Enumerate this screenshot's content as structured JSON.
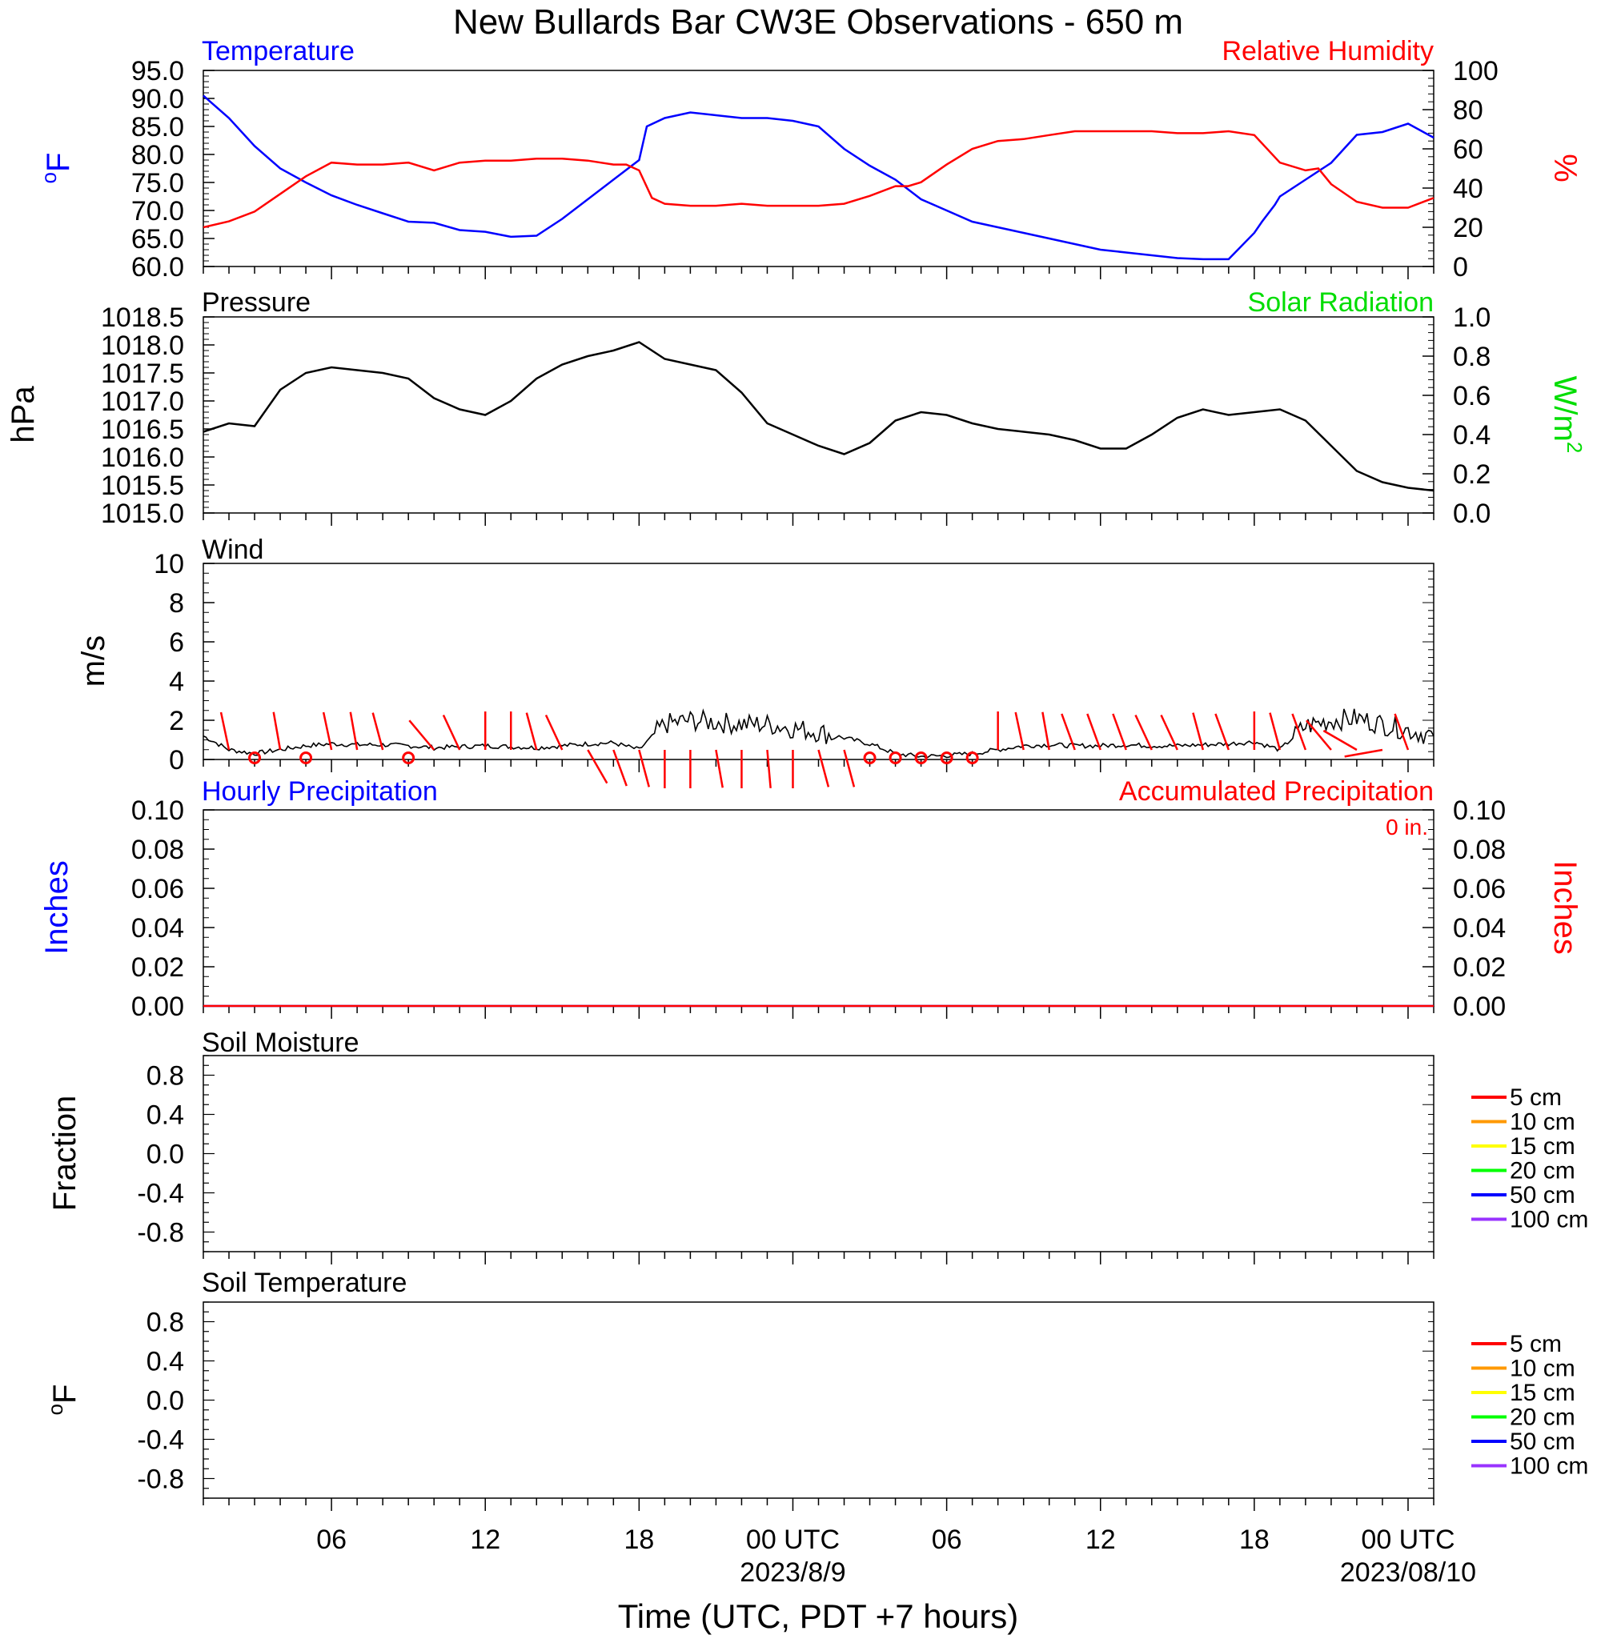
{
  "page_title": "New Bullards Bar CW3E Observations - 650 m",
  "x_axis": {
    "title": "Time (UTC, PDT +7 hours)",
    "tick_labels": [
      "06",
      "12",
      "18",
      "00 UTC",
      "06",
      "12",
      "18",
      "00 UTC"
    ],
    "date_labels": [
      "2023/8/9",
      "2023/08/10"
    ],
    "range_hours_utc": [
      1,
      49
    ]
  },
  "colors": {
    "temperature": "#0000ff",
    "humidity": "#ff0000",
    "pressure": "#000000",
    "solar": "#00dd00",
    "wind": "#000000",
    "wind_barb": "#ff0000",
    "hourly_precip": "#0000ff",
    "accum_precip": "#ff0000",
    "soil_5cm": "#ff0000",
    "soil_10cm": "#ff9900",
    "soil_15cm": "#ffff00",
    "soil_20cm": "#00ff00",
    "soil_50cm": "#0000ff",
    "soil_100cm": "#9933ff"
  },
  "panels": {
    "temp_rh": {
      "left_title": "Temperature",
      "right_title": "Relative Humidity",
      "left_unit_deg": "o",
      "left_unit": "F",
      "right_unit": "%",
      "left_ticks": [
        "95.0",
        "90.0",
        "85.0",
        "80.0",
        "75.0",
        "70.0",
        "65.0",
        "60.0"
      ],
      "right_ticks": [
        "100",
        "80",
        "60",
        "40",
        "20",
        "0"
      ]
    },
    "pressure": {
      "left_title": "Pressure",
      "right_title": "Solar Radiation",
      "left_unit": "hPa",
      "right_unit_base": "W/m",
      "right_unit_sup": "2",
      "left_ticks": [
        "1018.5",
        "1018.0",
        "1017.5",
        "1017.0",
        "1016.5",
        "1016.0",
        "1015.5",
        "1015.0"
      ],
      "right_ticks": [
        "1.0",
        "0.8",
        "0.6",
        "0.4",
        "0.2",
        "0.0"
      ]
    },
    "wind": {
      "left_title": "Wind",
      "left_unit": "m/s",
      "left_ticks": [
        "10",
        "8",
        "6",
        "4",
        "2",
        "0"
      ]
    },
    "precip": {
      "left_title": "Hourly Precipitation",
      "right_title": "Accumulated Precipitation",
      "accum_label": "0 in.",
      "left_unit": "Inches",
      "right_unit": "Inches",
      "left_ticks": [
        "0.10",
        "0.08",
        "0.06",
        "0.04",
        "0.02",
        "0.00"
      ],
      "right_ticks": [
        "0.10",
        "0.08",
        "0.06",
        "0.04",
        "0.02",
        "0.00"
      ]
    },
    "soil_moisture": {
      "left_title": "Soil Moisture",
      "left_unit": "Fraction",
      "left_ticks": [
        "0.8",
        "0.4",
        "0.0",
        "-0.4",
        "-0.8"
      ],
      "legend": [
        "5 cm",
        "10 cm",
        "15 cm",
        "20 cm",
        "50 cm",
        "100 cm"
      ]
    },
    "soil_temp": {
      "left_title": "Soil Temperature",
      "left_unit_deg": "o",
      "left_unit": "F",
      "left_ticks": [
        "0.8",
        "0.4",
        "0.0",
        "-0.4",
        "-0.8"
      ],
      "legend": [
        "5 cm",
        "10 cm",
        "15 cm",
        "20 cm",
        "50 cm",
        "100 cm"
      ]
    }
  },
  "chart_data": [
    {
      "type": "line",
      "title": "Temperature",
      "x_units": "hours UTC from 2023/8/8 00 UTC",
      "ylabel": "°F",
      "ylim": [
        60,
        95
      ],
      "series": [
        {
          "name": "Temperature",
          "x": [
            1,
            2,
            3,
            4,
            5,
            6,
            7,
            8,
            9,
            10,
            11,
            12,
            13,
            14,
            15,
            16,
            17,
            18,
            18.3,
            19,
            20,
            21,
            22,
            23,
            24,
            25,
            26,
            27,
            28,
            29,
            30,
            31,
            32,
            33,
            34,
            35,
            36,
            37,
            38,
            39,
            40,
            41,
            42,
            42.3,
            42.8,
            43,
            44,
            45,
            46,
            47,
            48,
            49
          ],
          "y": [
            90.5,
            86.5,
            81.5,
            77.5,
            75,
            72.7,
            71,
            69.5,
            68,
            67.8,
            66.5,
            66.2,
            65.3,
            65.5,
            68.5,
            72,
            75.5,
            79,
            85,
            86.5,
            87.5,
            87,
            86.5,
            86.5,
            86,
            85,
            81,
            78,
            75.5,
            72,
            70,
            68,
            67,
            66,
            65,
            64,
            63,
            62.5,
            62,
            61.5,
            61.3,
            61.3,
            66,
            68,
            71,
            72.5,
            75.5,
            78.5,
            83.5,
            84,
            85.5,
            83
          ]
        }
      ]
    },
    {
      "type": "line",
      "title": "Relative Humidity",
      "x_units": "hours UTC from 2023/8/8 00 UTC",
      "ylabel": "%",
      "ylim": [
        0,
        100
      ],
      "series": [
        {
          "name": "Relative Humidity",
          "x": [
            1,
            2,
            3,
            4,
            5,
            6,
            7,
            8,
            9,
            10,
            11,
            12,
            13,
            14,
            15,
            16,
            17,
            17.5,
            18,
            18.5,
            19,
            20,
            21,
            22,
            23,
            24,
            25,
            26,
            27,
            28,
            28.5,
            29,
            30,
            31,
            32,
            33,
            34,
            35,
            36,
            37,
            38,
            39,
            40,
            41,
            42,
            43,
            44,
            44.5,
            45,
            46,
            47,
            48,
            49
          ],
          "y": [
            20,
            23,
            28,
            37,
            46,
            53,
            52,
            52,
            53,
            49,
            53,
            54,
            54,
            55,
            55,
            54,
            52,
            52,
            49,
            35,
            32,
            31,
            31,
            32,
            31,
            31,
            31,
            32,
            36,
            41,
            41,
            43,
            52,
            60,
            64,
            65,
            67,
            69,
            69,
            69,
            69,
            68,
            68,
            69,
            67,
            53,
            49,
            50,
            42,
            33,
            30,
            30,
            35
          ]
        }
      ]
    },
    {
      "type": "line",
      "title": "Pressure",
      "x_units": "hours UTC from 2023/8/8 00 UTC",
      "ylabel": "hPa",
      "ylim": [
        1015.0,
        1018.5
      ],
      "series": [
        {
          "name": "Pressure",
          "x": [
            1,
            2,
            3,
            4,
            5,
            6,
            7,
            8,
            9,
            10,
            11,
            12,
            13,
            14,
            15,
            16,
            17,
            18,
            19,
            20,
            21,
            22,
            23,
            24,
            25,
            26,
            27,
            28,
            29,
            30,
            31,
            32,
            33,
            34,
            35,
            36,
            37,
            38,
            39,
            40,
            41,
            42,
            43,
            44,
            45,
            46,
            47,
            48,
            49
          ],
          "y": [
            1016.45,
            1016.6,
            1016.55,
            1017.2,
            1017.5,
            1017.6,
            1017.55,
            1017.5,
            1017.4,
            1017.05,
            1016.85,
            1016.75,
            1017.0,
            1017.4,
            1017.65,
            1017.8,
            1017.9,
            1018.05,
            1017.75,
            1017.65,
            1017.55,
            1017.15,
            1016.6,
            1016.4,
            1016.2,
            1016.05,
            1016.25,
            1016.65,
            1016.8,
            1016.75,
            1016.6,
            1016.5,
            1016.45,
            1016.4,
            1016.3,
            1016.15,
            1016.15,
            1016.4,
            1016.7,
            1016.85,
            1016.75,
            1016.8,
            1016.85,
            1016.65,
            1016.2,
            1015.75,
            1015.55,
            1015.45,
            1015.4
          ]
        }
      ]
    },
    {
      "type": "line",
      "title": "Wind",
      "x_units": "hours UTC from 2023/8/8 00 UTC",
      "ylabel": "m/s",
      "ylim": [
        0,
        10
      ],
      "series": [
        {
          "name": "Wind speed",
          "x": [
            1,
            2,
            3,
            4,
            5,
            6,
            7,
            8,
            9,
            10,
            11,
            12,
            13,
            14,
            15,
            16,
            17,
            18,
            19,
            20,
            21,
            22,
            23,
            24,
            25,
            26,
            27,
            28,
            29,
            30,
            31,
            32,
            33,
            34,
            35,
            36,
            37,
            38,
            39,
            40,
            41,
            42,
            43,
            44,
            45,
            46,
            47,
            48,
            49
          ],
          "y": [
            1.2,
            0.5,
            0.3,
            0.5,
            0.7,
            0.8,
            0.75,
            0.75,
            0.7,
            0.6,
            0.65,
            0.7,
            0.65,
            0.6,
            0.7,
            0.8,
            0.85,
            0.5,
            1.8,
            2.0,
            1.9,
            1.8,
            1.8,
            1.6,
            1.4,
            1.1,
            0.8,
            0.3,
            0.15,
            0.2,
            0.3,
            0.5,
            0.7,
            0.75,
            0.7,
            0.7,
            0.75,
            0.7,
            0.7,
            0.75,
            0.8,
            0.9,
            0.5,
            1.7,
            2.0,
            2.1,
            1.8,
            1.5,
            1.2
          ]
        }
      ]
    },
    {
      "type": "line",
      "title": "Hourly Precipitation",
      "x_units": "hours UTC from 2023/8/8 00 UTC",
      "ylabel": "Inches",
      "ylim": [
        0,
        0.1
      ],
      "series": [
        {
          "name": "Hourly Precipitation",
          "x": [
            1,
            49
          ],
          "y": [
            0,
            0
          ]
        },
        {
          "name": "Accumulated Precipitation",
          "x": [
            1,
            49
          ],
          "y": [
            0,
            0
          ]
        }
      ]
    },
    {
      "type": "line",
      "title": "Soil Moisture",
      "ylabel": "Fraction",
      "ylim": [
        -1,
        1
      ],
      "series": []
    },
    {
      "type": "line",
      "title": "Soil Temperature",
      "ylabel": "°F",
      "ylim": [
        -1,
        1
      ],
      "series": []
    }
  ]
}
